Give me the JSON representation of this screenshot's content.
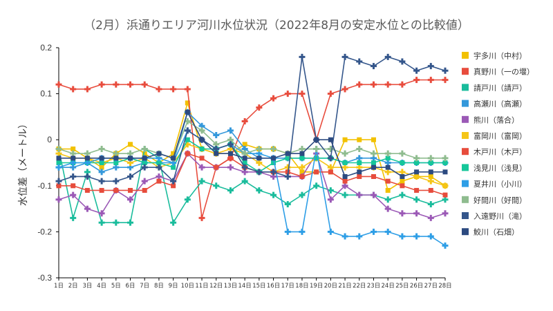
{
  "chart_data": {
    "type": "line",
    "title": "（2月）浜通りエリア河川水位状況（2022年8月の安定水位との比較値）",
    "xlabel": "",
    "ylabel": "水位差（メートル）",
    "ylim": [
      -0.3,
      0.2
    ],
    "yticks": [
      "0.2",
      "0.1",
      "0",
      "-0.1",
      "-0.2",
      "-0.3"
    ],
    "ytick_values": [
      0.2,
      0.1,
      0,
      -0.1,
      -0.2,
      -0.3
    ],
    "grid": false,
    "legend_position": "right",
    "categories": [
      "1日",
      "2日",
      "3日",
      "4日",
      "5日",
      "6日",
      "7日",
      "8日",
      "9日",
      "10日",
      "11日",
      "12日",
      "13日",
      "14日",
      "15日",
      "16日",
      "17日",
      "18日",
      "19日",
      "20日",
      "21日",
      "22日",
      "23日",
      "24日",
      "25日",
      "26日",
      "27日",
      "28日"
    ],
    "series": [
      {
        "name": "宇多川（中村）",
        "color": "#f2c100",
        "marker": "square",
        "values": [
          -0.02,
          -0.02,
          -0.04,
          -0.06,
          -0.03,
          -0.01,
          -0.03,
          -0.05,
          -0.03,
          0.08,
          -0.02,
          -0.03,
          -0.03,
          -0.01,
          -0.02,
          -0.02,
          -0.03,
          -0.07,
          -0.07,
          -0.07,
          0,
          0,
          0,
          -0.11,
          -0.09,
          -0.08,
          -0.08,
          -0.1
        ]
      },
      {
        "name": "真野川（一の堰）",
        "color": "#e84c3d",
        "marker": "plus",
        "values": [
          0.12,
          0.11,
          0.11,
          0.12,
          0.12,
          0.12,
          0.12,
          0.11,
          0.11,
          0.11,
          -0.17,
          -0.06,
          -0.04,
          0.04,
          0.07,
          0.09,
          0.1,
          0.1,
          0,
          0.1,
          0.11,
          0.12,
          0.12,
          0.12,
          0.12,
          0.13,
          0.13,
          0.13
        ]
      },
      {
        "name": "請戸川（請戸）",
        "color": "#1abc9c",
        "marker": "plus",
        "values": [
          -0.02,
          -0.17,
          -0.07,
          -0.18,
          -0.18,
          -0.18,
          -0.02,
          -0.04,
          -0.18,
          -0.13,
          -0.09,
          -0.1,
          -0.11,
          -0.09,
          -0.11,
          -0.12,
          -0.14,
          -0.12,
          -0.1,
          -0.11,
          -0.12,
          -0.12,
          -0.12,
          -0.13,
          -0.12,
          -0.13,
          -0.14,
          -0.13
        ]
      },
      {
        "name": "高瀬川（高瀬）",
        "color": "#3498db",
        "marker": "plus",
        "values": [
          -0.06,
          -0.06,
          -0.05,
          -0.07,
          -0.06,
          -0.06,
          -0.05,
          -0.05,
          -0.05,
          0.06,
          0.03,
          0.01,
          0.02,
          -0.02,
          -0.04,
          -0.04,
          -0.04,
          -0.04,
          -0.04,
          -0.04,
          -0.05,
          -0.04,
          -0.04,
          -0.05,
          -0.05,
          -0.05,
          -0.05,
          -0.05
        ]
      },
      {
        "name": "熊川（落合）",
        "color": "#9b59b6",
        "marker": "plus",
        "values": [
          -0.13,
          -0.12,
          -0.15,
          -0.16,
          -0.11,
          -0.13,
          -0.09,
          -0.08,
          -0.09,
          -0.03,
          -0.06,
          -0.06,
          -0.06,
          -0.07,
          -0.07,
          -0.08,
          -0.08,
          -0.08,
          -0.03,
          -0.13,
          -0.1,
          -0.12,
          -0.12,
          -0.15,
          -0.16,
          -0.16,
          -0.17,
          -0.16
        ]
      },
      {
        "name": "富岡川（富岡）",
        "color": "#f5c518",
        "marker": "plus",
        "values": [
          -0.03,
          -0.04,
          -0.04,
          -0.05,
          -0.04,
          -0.05,
          -0.04,
          -0.06,
          -0.05,
          -0.01,
          -0.02,
          -0.03,
          -0.02,
          -0.03,
          -0.05,
          -0.07,
          -0.06,
          -0.06,
          -0.04,
          -0.06,
          -0.06,
          -0.06,
          -0.06,
          -0.07,
          -0.07,
          -0.08,
          -0.09,
          -0.1
        ]
      },
      {
        "name": "木戸川（木戸）",
        "color": "#e74c3c",
        "marker": "square",
        "values": [
          -0.1,
          -0.1,
          -0.11,
          -0.11,
          -0.11,
          -0.11,
          -0.11,
          -0.09,
          -0.1,
          -0.03,
          -0.04,
          -0.06,
          -0.04,
          -0.06,
          -0.07,
          -0.07,
          -0.07,
          -0.08,
          -0.07,
          -0.07,
          -0.09,
          -0.08,
          -0.08,
          -0.09,
          -0.1,
          -0.11,
          -0.11,
          -0.12
        ]
      },
      {
        "name": "浅見川（浅見）",
        "color": "#16c79a",
        "marker": "square",
        "values": [
          -0.05,
          -0.05,
          -0.05,
          -0.05,
          -0.05,
          -0.04,
          -0.05,
          -0.05,
          -0.06,
          0,
          -0.02,
          -0.02,
          -0.01,
          -0.05,
          -0.07,
          -0.05,
          -0.04,
          -0.04,
          -0.04,
          -0.04,
          -0.05,
          -0.05,
          -0.05,
          -0.04,
          -0.05,
          -0.05,
          -0.05,
          -0.05
        ]
      },
      {
        "name": "夏井川（小川）",
        "color": "#2e9ee6",
        "marker": "plus",
        "values": [
          -0.06,
          -0.05,
          -0.05,
          -0.04,
          -0.04,
          -0.04,
          -0.04,
          -0.04,
          -0.05,
          0.02,
          0,
          -0.02,
          -0.01,
          -0.03,
          -0.03,
          -0.04,
          -0.2,
          -0.2,
          -0.02,
          -0.2,
          -0.21,
          -0.21,
          -0.2,
          -0.2,
          -0.21,
          -0.21,
          -0.21,
          -0.23
        ]
      },
      {
        "name": "好間川（好間）",
        "color": "#8fbc8f",
        "marker": "plus",
        "values": [
          -0.02,
          -0.03,
          -0.03,
          -0.02,
          -0.03,
          -0.03,
          -0.02,
          -0.03,
          -0.04,
          0.04,
          0.02,
          -0.01,
          0,
          -0.03,
          -0.02,
          -0.02,
          -0.03,
          -0.02,
          -0.02,
          -0.02,
          -0.03,
          -0.02,
          -0.03,
          -0.03,
          -0.03,
          -0.04,
          -0.04,
          -0.04
        ]
      },
      {
        "name": "入遠野川（滝）",
        "color": "#34568b",
        "marker": "plus",
        "values": [
          -0.09,
          -0.08,
          -0.08,
          -0.09,
          -0.09,
          -0.08,
          -0.06,
          -0.06,
          -0.09,
          0.02,
          0,
          -0.02,
          -0.01,
          -0.06,
          -0.07,
          -0.07,
          -0.08,
          0.18,
          0,
          -0.04,
          0.18,
          0.17,
          0.16,
          0.18,
          0.17,
          0.15,
          0.16,
          0.15
        ]
      },
      {
        "name": "鮫川（石畑）",
        "color": "#2c4a80",
        "marker": "square",
        "values": [
          -0.04,
          -0.04,
          -0.04,
          -0.04,
          -0.04,
          -0.04,
          -0.04,
          -0.03,
          -0.04,
          0.06,
          0,
          -0.03,
          -0.03,
          -0.04,
          -0.04,
          -0.04,
          -0.03,
          -0.03,
          0,
          0,
          -0.08,
          -0.07,
          -0.06,
          -0.06,
          -0.08,
          -0.07,
          -0.07,
          -0.07
        ]
      }
    ]
  }
}
